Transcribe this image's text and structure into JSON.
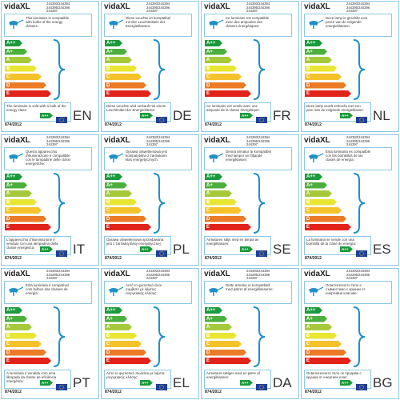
{
  "common": {
    "brand": "vidaXL",
    "codes": [
      "244393/244394",
      "244395/244396",
      "244397"
    ],
    "classes": [
      "A++",
      "A+",
      "A",
      "B",
      "C",
      "D",
      "E"
    ],
    "included_class": "A++",
    "regulation": "874/2012"
  },
  "labels": [
    {
      "language": "EN",
      "top_text": "This luminaire is compatible with bulbs of the energy classes:",
      "bottom_text": "The luminaire is sold with a bulb of the energy class:"
    },
    {
      "language": "DE",
      "top_text": "Diese Leuchte ist kompatibel mit den Leuchtmitteln der Energieklassen:",
      "bottom_text": "Diese Leuchte wird verkauft mit einem Leuchtmittel der Energieklasse:"
    },
    {
      "language": "FR",
      "top_text": "Ce luminaire est compatible avec des ampoules des classes énergétiques:",
      "bottom_text": "Ce luminaire est vendu avec une ampoule de la classe énergétique:"
    },
    {
      "language": "NL",
      "top_text": "Deze lamp is geschikt voor peren van de volgende energieklassen:",
      "bottom_text": "Deze lamp wordt verkocht met een peer van de volgende energieklasse:"
    },
    {
      "language": "IT",
      "top_text": "Questo apparecchio d'illuminazione è compatibile con le lampadine delle classi energetiche:",
      "bottom_text": "L'apparecchio d'illuminazione è venduto con una lampadina della classe energetica:"
    },
    {
      "language": "PL",
      "top_text": "Oprawa oświetleniowa jest kompatybilna z żarówkami klas energetycznych:",
      "bottom_text": "Oprawa oświetleniowa sprzedawana jest z żarówką klasy energetycznej:"
    },
    {
      "language": "SE",
      "top_text": "Denna armatur är kompatibel med lampor av följande energiklasser:",
      "bottom_text": "Armaturen säljs med en lampa av energiklassen:"
    },
    {
      "language": "ES",
      "top_text": "Esta luminaria es compatible con las bombillas de las clases de energía:",
      "bottom_text": "La luminaria se vende con una bombilla de la clase de energía:"
    },
    {
      "language": "PT",
      "top_text": "Esta luminária é compatível com bulbos das classes de energia:",
      "bottom_text": "A luminária é vendida com uma lâmpada da classe de eficiência energética:"
    },
    {
      "language": "EL",
      "top_text": "Αυτό το φωτιστικό είναι συμβατό με λάμπες ενεργειακής κλάσης:",
      "bottom_text": "Αυτό το φωτιστικό πωλείται με λάμπα ενεργειακής κλάσης:"
    },
    {
      "language": "DA",
      "top_text": "Dette armatur er kompatibelt med pærer af energiklasserne:",
      "bottom_text": "Armaturet sælges med en pære af energiklassen:"
    },
    {
      "language": "BG",
      "top_text": "Осветителното тяло е съвместимо с крушки от енергийни класове:",
      "bottom_text": "Осветителното тяло се продава с крушка от енергиен клас:"
    }
  ]
}
